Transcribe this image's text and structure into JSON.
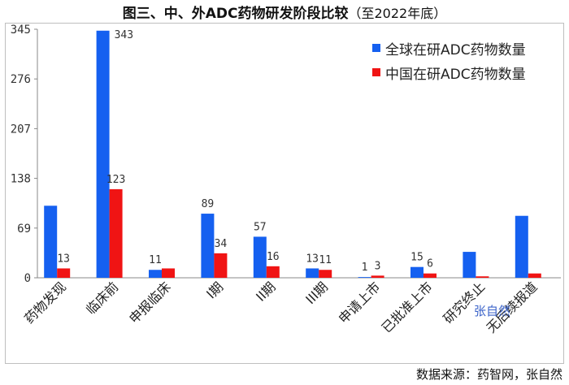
{
  "header": {
    "title": "图三、中、外ADC药物研发阶段比较",
    "subtitle": "（至2022年底）"
  },
  "footer": {
    "source": "数据来源：药智网，张自然"
  },
  "watermark": {
    "text": "张自然"
  },
  "colors": {
    "global": "#1560f0",
    "china": "#f01414"
  },
  "chart_data": {
    "type": "bar",
    "categories": [
      "药物发现",
      "临床前",
      "申报临床",
      "I期",
      "II期",
      "III期",
      "申请上市",
      "已批准上市",
      "研究终止",
      "无后续报道"
    ],
    "series": [
      {
        "name": "全球在研ADC药物数量",
        "values": [
          100,
          343,
          11,
          89,
          57,
          13,
          1,
          15,
          36,
          86
        ]
      },
      {
        "name": "中国在研ADC药物数量",
        "values": [
          13,
          123,
          13,
          34,
          16,
          11,
          3,
          6,
          2,
          6
        ]
      }
    ],
    "data_labels": [
      [
        "",
        "343",
        "11",
        "89",
        "57",
        "13",
        "1",
        "15",
        "",
        ""
      ],
      [
        "13",
        "123",
        "",
        "34",
        "16",
        "11",
        "3",
        "6",
        "",
        ""
      ]
    ],
    "yticks": [
      "0",
      "69",
      "138",
      "207",
      "276",
      "345"
    ],
    "ylim": [
      0,
      345
    ],
    "legend_position": "top-right",
    "grid": false
  }
}
